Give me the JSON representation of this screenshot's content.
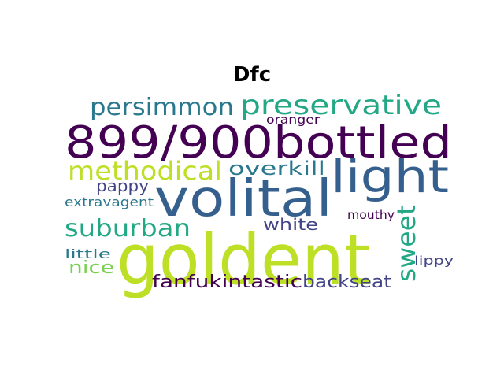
{
  "title": "Dfc",
  "words": [
    {
      "text": "goldent",
      "color": "#bddf26"
    },
    {
      "text": "899/900bottled",
      "color": "#440154"
    },
    {
      "text": "volital",
      "color": "#355f8d"
    },
    {
      "text": "light",
      "color": "#355f8d"
    },
    {
      "text": "preservative",
      "color": "#22a884"
    },
    {
      "text": "persimmon",
      "color": "#2a788e"
    },
    {
      "text": "methodical",
      "color": "#bddf26"
    },
    {
      "text": "overkill",
      "color": "#2a788e"
    },
    {
      "text": "suburban",
      "color": "#22a884"
    },
    {
      "text": "sweet",
      "color": "#22a884"
    },
    {
      "text": "pappy",
      "color": "#414487"
    },
    {
      "text": "white",
      "color": "#414487"
    },
    {
      "text": "extravagent",
      "color": "#2a788e"
    },
    {
      "text": "fanfukintastic",
      "color": "#440154"
    },
    {
      "text": "backseat",
      "color": "#414487"
    },
    {
      "text": "nice",
      "color": "#7ad151"
    },
    {
      "text": "little",
      "color": "#2a788e"
    },
    {
      "text": "mouthy",
      "color": "#440154"
    },
    {
      "text": "lippy",
      "color": "#414487"
    },
    {
      "text": "oranger",
      "color": "#440154"
    }
  ]
}
